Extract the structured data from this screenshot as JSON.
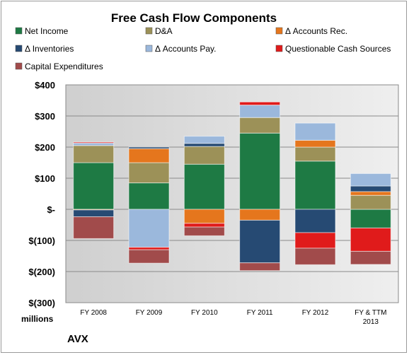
{
  "chart_data": {
    "type": "bar",
    "stacked": true,
    "title": "Free Cash Flow Components",
    "unit_label": "millions",
    "company": "AVX",
    "categories": [
      "FY 2008",
      "FY 2009",
      "FY 2010",
      "FY 2011",
      "FY 2012",
      "FY & TTM 2013"
    ],
    "ylim": [
      -300,
      400
    ],
    "yticks": [
      400,
      300,
      200,
      100,
      0,
      -100,
      -200,
      -300
    ],
    "ytick_labels": [
      "$400",
      "$300",
      "$200",
      "$100",
      "$-",
      "$(100)",
      "$(200)",
      "$(300)"
    ],
    "grid": true,
    "legend_position": "top",
    "series": [
      {
        "name": "Net Income",
        "color": "#1e7a44",
        "values": [
          150,
          85,
          145,
          245,
          155,
          -60
        ]
      },
      {
        "name": "D&A",
        "color": "#9c9158",
        "values": [
          55,
          65,
          57,
          50,
          45,
          45
        ]
      },
      {
        "name": "Δ Accounts Rec.",
        "color": "#e5761d",
        "values": [
          -2,
          45,
          -45,
          -35,
          22,
          12
        ]
      },
      {
        "name": "Δ Inventories",
        "color": "#264a73",
        "values": [
          -22,
          5,
          10,
          -137,
          -75,
          18
        ]
      },
      {
        "name": "Δ Accounts Pay.",
        "color": "#9bb8dc",
        "values": [
          8,
          -122,
          23,
          40,
          55,
          40
        ]
      },
      {
        "name": "Questionable Cash Sources",
        "color": "#e01b1b",
        "values": [
          3,
          -8,
          -12,
          10,
          -50,
          -75
        ]
      },
      {
        "name": "Capital Expenditures",
        "color": "#a14b4b",
        "values": [
          -70,
          -43,
          -28,
          -25,
          -53,
          -42
        ]
      }
    ]
  }
}
